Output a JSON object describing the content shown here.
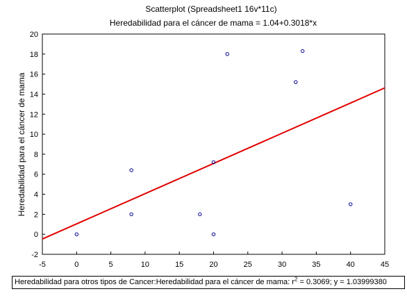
{
  "chart_data": {
    "type": "scatter",
    "title": "Scatterplot (Spreadsheet1 16v*11c)",
    "subtitle": "Heredabilidad para el cáncer de mama = 1.04+0.3018*x",
    "xlabel": "",
    "ylabel": "Heredabilidad para el cáncer de mama",
    "xlim": [
      -5,
      45
    ],
    "ylim": [
      -2,
      20
    ],
    "x_ticks": [
      -5,
      0,
      5,
      10,
      15,
      20,
      25,
      30,
      35,
      40,
      45
    ],
    "y_ticks": [
      -2,
      0,
      2,
      4,
      6,
      8,
      10,
      12,
      14,
      16,
      18,
      20
    ],
    "grid": false,
    "points": [
      {
        "x": 0,
        "y": 0
      },
      {
        "x": 8,
        "y": 6.4
      },
      {
        "x": 8,
        "y": 2
      },
      {
        "x": 18,
        "y": 2
      },
      {
        "x": 20,
        "y": 0
      },
      {
        "x": 20,
        "y": 7.2
      },
      {
        "x": 22,
        "y": 18
      },
      {
        "x": 32,
        "y": 15.2
      },
      {
        "x": 33,
        "y": 18.3
      },
      {
        "x": 40,
        "y": 3
      }
    ],
    "fit": {
      "intercept": 1.04,
      "slope": 0.3018
    },
    "colors": {
      "points": "#00008b",
      "fit_line": "#e00000",
      "axes": "#000000"
    }
  },
  "legend": {
    "text_before": "Heredabilidad para otros tipos de Cancer:Heredabilidad para el cáncer de mama:  r",
    "superscript": "2",
    "text_after": " = 0.3069;  y = 1.03999380"
  }
}
